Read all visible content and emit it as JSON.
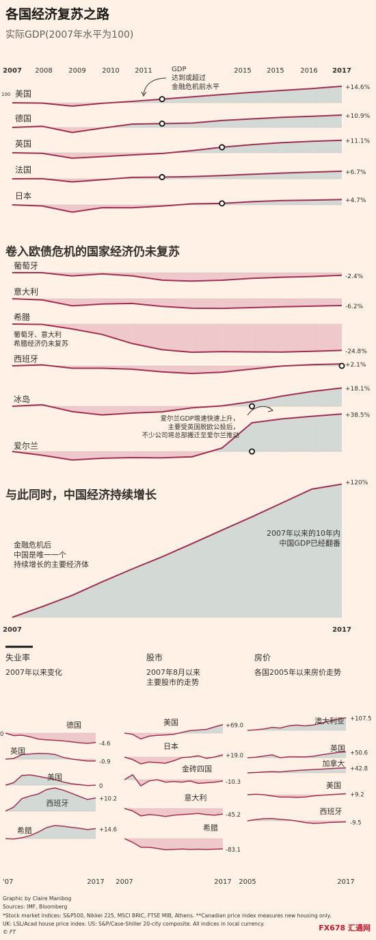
{
  "header": {
    "title": "各国经济复苏之路",
    "subtitle": "实际GDP(2007年水平为100)"
  },
  "colors": {
    "line": "#9e2f50",
    "below": "#efc8cc",
    "above": "#d3d9d4",
    "text": "#33302e",
    "background": "#fff1e5"
  },
  "chart_data": [
    {
      "type": "line",
      "id": "recovery",
      "x_ticks": [
        "2007",
        "2008",
        "2009",
        "2010",
        "2011",
        "2015",
        "2015",
        "2016",
        "2017"
      ],
      "baseline_label": "100",
      "annotation": "GDP\n达到或超过\n金融危机前水平",
      "series": [
        {
          "name": "美国",
          "end_label": "+14.6%",
          "recovered": "2011",
          "values": [
            100,
            99.7,
            97,
            99.6,
            101.2,
            103.2,
            105.2,
            107.3,
            109.2,
            110.9,
            112.6,
            114.6
          ]
        },
        {
          "name": "德国",
          "end_label": "+10.9%",
          "recovered": "2011",
          "values": [
            100,
            101,
            95.5,
            99.4,
            103,
            103.4,
            103.9,
            106.1,
            107.6,
            108.9,
            109.9,
            110.9
          ]
        },
        {
          "name": "英国",
          "end_label": "+11.1%",
          "recovered": "2013",
          "values": [
            100,
            99.5,
            95.2,
            96.6,
            98.1,
            99.4,
            101.9,
            104.9,
            107.2,
            109,
            110.1,
            111.1
          ]
        },
        {
          "name": "法国",
          "end_label": "+6.7%",
          "recovered": "2011",
          "values": [
            100,
            100.2,
            97.3,
            99.2,
            101.3,
            101.5,
            102,
            102.9,
            104,
            105.1,
            105.9,
            106.7
          ]
        },
        {
          "name": "日本",
          "end_label": "+4.7%",
          "recovered": "2013",
          "values": [
            100,
            99,
            93.6,
            97.5,
            97.4,
            98.9,
            100.9,
            101.3,
            102.8,
            103.8,
            104.2,
            104.7
          ]
        }
      ]
    },
    {
      "type": "line",
      "id": "euro_crisis",
      "title": "卷入欧债危机的国家经济仍未复苏",
      "note": "葡萄牙、意大利\n希腊经济仍未复苏",
      "annotation": "爱尔兰GDP增速快速上升，\n主要受英国脱欧公投后，\n不少公司将总部搬迁至爱尔兰推动",
      "series": [
        {
          "name": "葡萄牙",
          "end_label": "-2.4%",
          "values": [
            100,
            100,
            97,
            98.9,
            97.1,
            93.2,
            92.3,
            93.1,
            94.8,
            95.9,
            96.5,
            97.6
          ]
        },
        {
          "name": "意大利",
          "end_label": "-6.2%",
          "values": [
            100,
            98.9,
            93.5,
            95.1,
            95.7,
            93,
            91.3,
            91.2,
            91.9,
            92.7,
            93.2,
            93.8
          ]
        },
        {
          "name": "希腊",
          "end_label": "-24.8%",
          "values": [
            100,
            99.7,
            95.4,
            90.2,
            81.7,
            75.9,
            73.5,
            74,
            73.8,
            73.6,
            74.3,
            75.2
          ]
        },
        {
          "name": "西班牙",
          "end_label": "+2.1%",
          "recovered": "2017",
          "values": [
            100,
            101.1,
            97.5,
            97.5,
            96.5,
            93.7,
            92.1,
            93.4,
            96.7,
            99.8,
            101.2,
            102.1
          ]
        },
        {
          "name": "冰岛",
          "end_label": "+18.1%",
          "recovered": "2014",
          "values": [
            100,
            101.5,
            94.8,
            91.5,
            93.3,
            94.5,
            98.5,
            100.4,
            104.5,
            110.1,
            114.6,
            118.1
          ]
        },
        {
          "name": "爱尔兰",
          "end_label": "+38.5%",
          "recovered": "2014",
          "values": [
            100,
            96.1,
            91.3,
            93,
            93.7,
            93.5,
            94.6,
            103.5,
            129.5,
            133.5,
            136.2,
            138.5
          ]
        }
      ]
    },
    {
      "type": "area",
      "id": "china",
      "title": "与此同时，中国经济持续增长",
      "x_ticks": [
        "2007",
        "2017"
      ],
      "note_left": "金融危机后\n中国是唯一一个\n持续增长的主要经济体",
      "note_right": "2007年以来的10年内\n中国GDP已经翻番",
      "series": [
        {
          "name": "中国",
          "end_label": "+120%",
          "values": [
            100,
            109.6,
            119.8,
            132,
            143.5,
            154.5,
            166.4,
            178.5,
            190.5,
            203,
            215.5,
            220
          ]
        }
      ]
    },
    {
      "type": "line",
      "id": "unemployment",
      "title": "失业率",
      "subtitle": "2007年以来变化",
      "x_ticks": [
        "'07",
        "2017"
      ],
      "series": [
        {
          "name": "德国",
          "start_label": "0",
          "end_label": "-4.6",
          "values": [
            8.8,
            7.6,
            7.8,
            7,
            5.9,
            5.5,
            5.3,
            5,
            4.6,
            4.1,
            3.8,
            4.2
          ]
        },
        {
          "name": "英国",
          "end_label": "-0.9",
          "values": [
            5.3,
            5.6,
            7.5,
            7.8,
            8.1,
            8,
            7.6,
            6.2,
            5.4,
            4.9,
            4.4,
            4.4
          ]
        },
        {
          "name": "美国",
          "end_label": "0",
          "values": [
            4.6,
            5.8,
            9.3,
            9.6,
            8.9,
            8.1,
            7.4,
            6.2,
            5.3,
            4.9,
            4.4,
            4.6
          ]
        },
        {
          "name": "西班牙",
          "end_label": "+10.2",
          "values": [
            8.2,
            11.3,
            17.9,
            19.9,
            21.4,
            24.8,
            26.1,
            24.4,
            22.1,
            19.6,
            17.2,
            18.4
          ]
        },
        {
          "name": "希腊",
          "end_label": "+14.6",
          "values": [
            8.4,
            7.8,
            9.6,
            12.7,
            17.9,
            24.4,
            27.5,
            26.5,
            24.9,
            23.5,
            21.5,
            23
          ]
        }
      ]
    },
    {
      "type": "line",
      "id": "stocks",
      "title": "股市",
      "subtitle": "2007年8月以来\n主要股市的走势",
      "x_ticks": [
        "2007",
        "2017"
      ],
      "series": [
        {
          "name": "美国",
          "end_label": "+69.0",
          "values": [
            0,
            -10,
            -48,
            -25,
            -18,
            -15,
            -10,
            5,
            20,
            25,
            30,
            50,
            69
          ]
        },
        {
          "name": "日本",
          "end_label": "+19.0",
          "values": [
            0,
            -20,
            -55,
            -40,
            -45,
            -50,
            -30,
            -5,
            0,
            10,
            -10,
            0,
            19
          ]
        },
        {
          "name": "金砖四国",
          "end_label": "-10.3",
          "values": [
            0,
            40,
            -50,
            -10,
            0,
            -20,
            -15,
            -20,
            -10,
            -30,
            -25,
            -20,
            -10.3
          ]
        },
        {
          "name": "意大利",
          "end_label": "-45.2",
          "values": [
            0,
            -20,
            -60,
            -50,
            -55,
            -65,
            -55,
            -50,
            -45,
            -40,
            -50,
            -55,
            -45.2
          ]
        },
        {
          "name": "希腊",
          "end_label": "-83.1",
          "values": [
            0,
            -30,
            -70,
            -70,
            -80,
            -90,
            -88,
            -85,
            -88,
            -86,
            -88,
            -86,
            -83.1
          ]
        }
      ]
    },
    {
      "type": "line",
      "id": "house_prices",
      "title": "房价",
      "subtitle": "各国2005年以来房价走势",
      "x_ticks": [
        "2005",
        "2017"
      ],
      "series": [
        {
          "name": "澳大利亚",
          "end_label": "+107.5",
          "values": [
            0,
            5,
            12,
            25,
            20,
            38,
            45,
            38,
            45,
            62,
            80,
            95,
            107.5
          ]
        },
        {
          "name": "英国",
          "end_label": "+50.6",
          "values": [
            0,
            5,
            15,
            25,
            0,
            8,
            8,
            7,
            12,
            25,
            35,
            45,
            50.6
          ]
        },
        {
          "name": "加拿大",
          "end_label": "+42.8",
          "values": [
            0,
            3,
            7,
            10,
            7,
            15,
            20,
            24,
            28,
            32,
            36,
            40,
            42.8
          ]
        },
        {
          "name": "美国",
          "end_label": "+9.2",
          "values": [
            0,
            5,
            0,
            -10,
            -20,
            -20,
            -22,
            -20,
            -10,
            -5,
            0,
            5,
            9.2
          ]
        },
        {
          "name": "西班牙",
          "end_label": "-9.5",
          "values": [
            0,
            10,
            18,
            20,
            12,
            7,
            -2,
            -15,
            -22,
            -20,
            -14,
            -12,
            -9.5
          ]
        }
      ]
    }
  ],
  "footer": {
    "credit": "Graphic by Claire Manibog",
    "sources": "Sources: IMF, Bloomberg",
    "note1": "*Stock market indices: S&P500, Nikkei 225, MSCI BRIC, FTSE MIB, Athens. **Canadian price index measures new housing only.",
    "note2": "UK: LSL/Acad house price index. US: S&P/Case-Shiller 20-city composite. All indices in local currency.",
    "brand": "© FT",
    "watermark": "FX678 汇通网"
  }
}
